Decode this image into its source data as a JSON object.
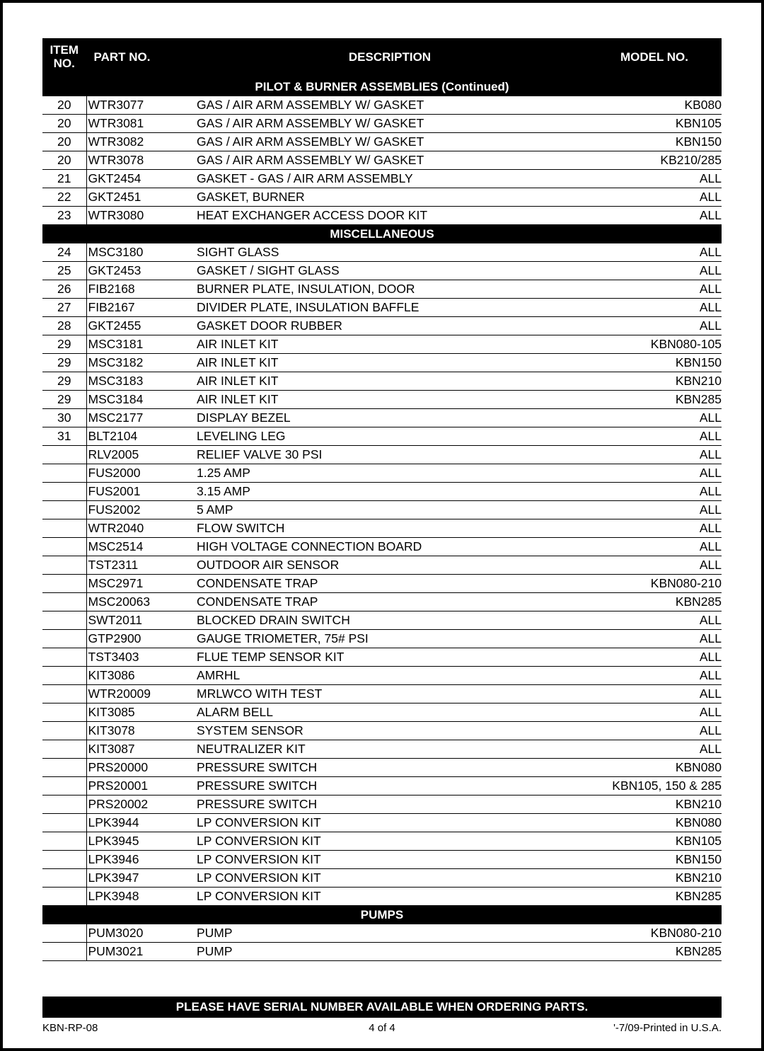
{
  "columns": {
    "item": "ITEM NO.",
    "part": "PART NO.",
    "desc": "DESCRIPTION",
    "model": "MODEL NO."
  },
  "sections": [
    {
      "title": "PILOT & BURNER ASSEMBLIES (Continued)",
      "rows": [
        {
          "item": "20",
          "part": "WTR3077",
          "desc": "GAS / AIR ARM ASSEMBLY W/ GASKET",
          "model": "KB080"
        },
        {
          "item": "20",
          "part": "WTR3081",
          "desc": "GAS / AIR ARM ASSEMBLY W/ GASKET",
          "model": "KBN105"
        },
        {
          "item": "20",
          "part": "WTR3082",
          "desc": "GAS / AIR ARM ASSEMBLY W/ GASKET",
          "model": "KBN150"
        },
        {
          "item": "20",
          "part": "WTR3078",
          "desc": "GAS / AIR ARM ASSEMBLY W/ GASKET",
          "model": "KB210/285"
        },
        {
          "item": "21",
          "part": "GKT2454",
          "desc": "GASKET - GAS / AIR ARM ASSEMBLY",
          "model": "ALL"
        },
        {
          "item": "22",
          "part": "GKT2451",
          "desc": "GASKET, BURNER",
          "model": "ALL"
        },
        {
          "item": "23",
          "part": "WTR3080",
          "desc": "HEAT EXCHANGER ACCESS DOOR KIT",
          "model": "ALL"
        }
      ]
    },
    {
      "title": "MISCELLANEOUS",
      "rows": [
        {
          "item": "24",
          "part": "MSC3180",
          "desc": "SIGHT GLASS",
          "model": "ALL"
        },
        {
          "item": "25",
          "part": "GKT2453",
          "desc": "GASKET / SIGHT GLASS",
          "model": "ALL"
        },
        {
          "item": "26",
          "part": "FIB2168",
          "desc": "BURNER PLATE, INSULATION, DOOR",
          "model": "ALL"
        },
        {
          "item": "27",
          "part": "FIB2167",
          "desc": "DIVIDER PLATE, INSULATION BAFFLE",
          "model": "ALL"
        },
        {
          "item": "28",
          "part": "GKT2455",
          "desc": "GASKET DOOR RUBBER",
          "model": "ALL"
        },
        {
          "item": "29",
          "part": "MSC3181",
          "desc": "AIR INLET KIT",
          "model": "KBN080-105"
        },
        {
          "item": "29",
          "part": "MSC3182",
          "desc": "AIR INLET KIT",
          "model": "KBN150"
        },
        {
          "item": "29",
          "part": "MSC3183",
          "desc": "AIR INLET KIT",
          "model": "KBN210"
        },
        {
          "item": "29",
          "part": "MSC3184",
          "desc": "AIR INLET KIT",
          "model": "KBN285"
        },
        {
          "item": "30",
          "part": "MSC2177",
          "desc": "DISPLAY BEZEL",
          "model": "ALL"
        },
        {
          "item": "31",
          "part": "BLT2104",
          "desc": "LEVELING LEG",
          "model": "ALL"
        },
        {
          "item": "",
          "part": "RLV2005",
          "desc": "RELIEF VALVE 30 PSI",
          "model": "ALL"
        },
        {
          "item": "",
          "part": "FUS2000",
          "desc": "1.25 AMP",
          "model": "ALL"
        },
        {
          "item": "",
          "part": "FUS2001",
          "desc": "3.15 AMP",
          "model": "ALL"
        },
        {
          "item": "",
          "part": "FUS2002",
          "desc": "5 AMP",
          "model": "ALL"
        },
        {
          "item": "",
          "part": "WTR2040",
          "desc": "FLOW SWITCH",
          "model": "ALL"
        },
        {
          "item": "",
          "part": "MSC2514",
          "desc": "HIGH VOLTAGE CONNECTION BOARD",
          "model": "ALL"
        },
        {
          "item": "",
          "part": "TST2311",
          "desc": "OUTDOOR AIR SENSOR",
          "model": "ALL"
        },
        {
          "item": "",
          "part": "MSC2971",
          "desc": "CONDENSATE TRAP",
          "model": "KBN080-210"
        },
        {
          "item": "",
          "part": "MSC20063",
          "desc": "CONDENSATE TRAP",
          "model": "KBN285"
        },
        {
          "item": "",
          "part": "SWT2011",
          "desc": "BLOCKED DRAIN SWITCH",
          "model": "ALL"
        },
        {
          "item": "",
          "part": "GTP2900",
          "desc": "GAUGE TRIOMETER, 75# PSI",
          "model": "ALL"
        },
        {
          "item": "",
          "part": "TST3403",
          "desc": "FLUE TEMP SENSOR KIT",
          "model": "ALL"
        },
        {
          "item": "",
          "part": "KIT3086",
          "desc": "AMRHL",
          "model": "ALL"
        },
        {
          "item": "",
          "part": "WTR20009",
          "desc": "MRLWCO WITH TEST",
          "model": "ALL"
        },
        {
          "item": "",
          "part": "KIT3085",
          "desc": "ALARM BELL",
          "model": "ALL"
        },
        {
          "item": "",
          "part": "KIT3078",
          "desc": "SYSTEM SENSOR",
          "model": "ALL"
        },
        {
          "item": "",
          "part": "KIT3087",
          "desc": "NEUTRALIZER KIT",
          "model": "ALL"
        },
        {
          "item": "",
          "part": "PRS20000",
          "desc": "PRESSURE SWITCH",
          "model": "KBN080"
        },
        {
          "item": "",
          "part": "PRS20001",
          "desc": "PRESSURE SWITCH",
          "model": "KBN105, 150 & 285"
        },
        {
          "item": "",
          "part": "PRS20002",
          "desc": "PRESSURE SWITCH",
          "model": "KBN210"
        },
        {
          "item": "",
          "part": "LPK3944",
          "desc": "LP CONVERSION KIT",
          "model": "KBN080"
        },
        {
          "item": "",
          "part": "LPK3945",
          "desc": "LP CONVERSION KIT",
          "model": "KBN105"
        },
        {
          "item": "",
          "part": "LPK3946",
          "desc": "LP CONVERSION KIT",
          "model": "KBN150"
        },
        {
          "item": "",
          "part": "LPK3947",
          "desc": "LP CONVERSION KIT",
          "model": "KBN210"
        },
        {
          "item": "",
          "part": "LPK3948",
          "desc": "LP CONVERSION KIT",
          "model": "KBN285"
        }
      ]
    },
    {
      "title": "PUMPS",
      "rows": [
        {
          "item": "",
          "part": "PUM3020",
          "desc": "PUMP",
          "model": "KBN080-210"
        },
        {
          "item": "",
          "part": "PUM3021",
          "desc": "PUMP",
          "model": "KBN285"
        }
      ]
    }
  ],
  "footer_note": "PLEASE HAVE SERIAL NUMBER AVAILABLE WHEN ORDERING PARTS.",
  "footer_left": "KBN-RP-08",
  "footer_center": "4 of 4",
  "footer_right": "'-7/09-Printed in U.S.A."
}
